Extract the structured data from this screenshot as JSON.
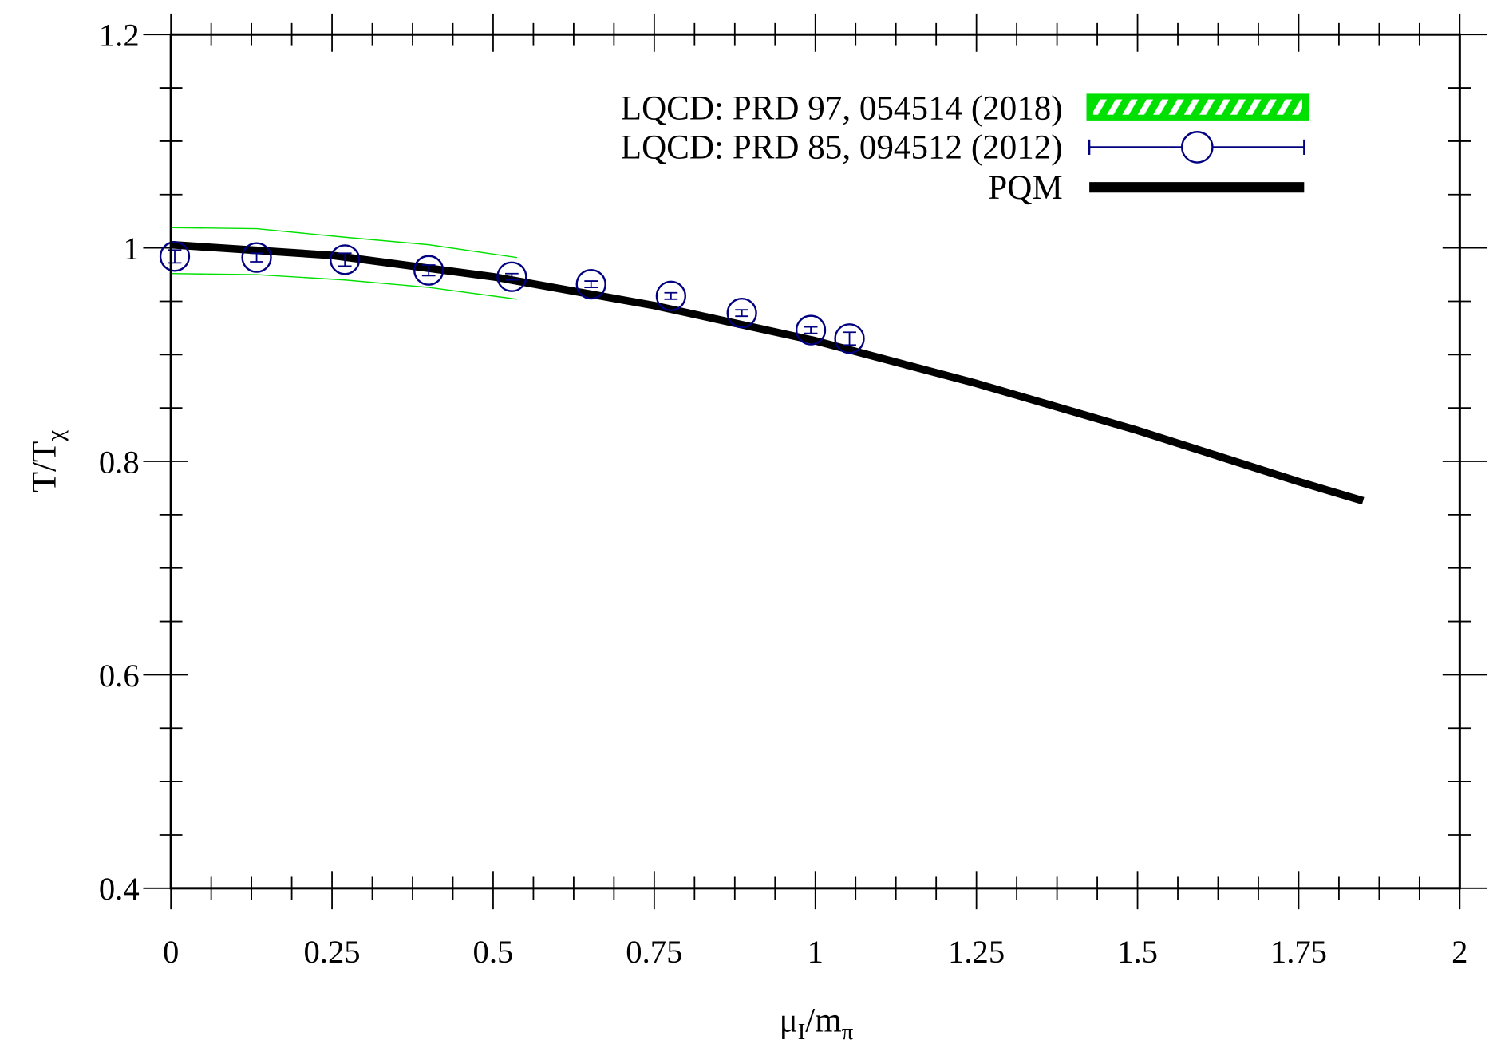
{
  "chart_data": {
    "type": "line",
    "xlabel": "μ_I/m_π",
    "ylabel": "T/T_χ",
    "xlim": [
      0,
      2
    ],
    "ylim": [
      0.4,
      1.2
    ],
    "xticks": [
      "0",
      "0.25",
      "0.5",
      "0.75",
      "1",
      "1.25",
      "1.5",
      "1.75",
      "2"
    ],
    "yticks": [
      "0.4",
      "0.6",
      "0.8",
      "1",
      "1.2"
    ],
    "grid": false,
    "legend_placement": "top-right",
    "series": [
      {
        "name": "LQCD: PRD 97, 054514 (2018)",
        "kind": "band",
        "color": "#00e000",
        "x": [
          0,
          0.133,
          0.27,
          0.4,
          0.537
        ],
        "upper": [
          1.019,
          1.018,
          1.01,
          1.003,
          0.991
        ],
        "lower": [
          0.976,
          0.975,
          0.97,
          0.963,
          0.952
        ]
      },
      {
        "name": "LQCD: PRD 85, 094512 (2012)",
        "kind": "points",
        "color": "#000080",
        "x": [
          0.006,
          0.133,
          0.27,
          0.4,
          0.529,
          0.652,
          0.776,
          0.886,
          0.993,
          1.053
        ],
        "y": [
          0.992,
          0.991,
          0.989,
          0.979,
          0.973,
          0.966,
          0.955,
          0.939,
          0.923,
          0.915
        ],
        "yerr": [
          0.006,
          0.004,
          0.006,
          0.005,
          0.003,
          0.003,
          0.003,
          0.003,
          0.003,
          0.006
        ]
      },
      {
        "name": "PQM",
        "kind": "line",
        "color": "#000000",
        "x": [
          0,
          0.25,
          0.5,
          0.75,
          1,
          1.25,
          1.5,
          1.75,
          1.85
        ],
        "y": [
          1.003,
          0.993,
          0.973,
          0.946,
          0.913,
          0.873,
          0.829,
          0.781,
          0.763
        ]
      }
    ]
  }
}
